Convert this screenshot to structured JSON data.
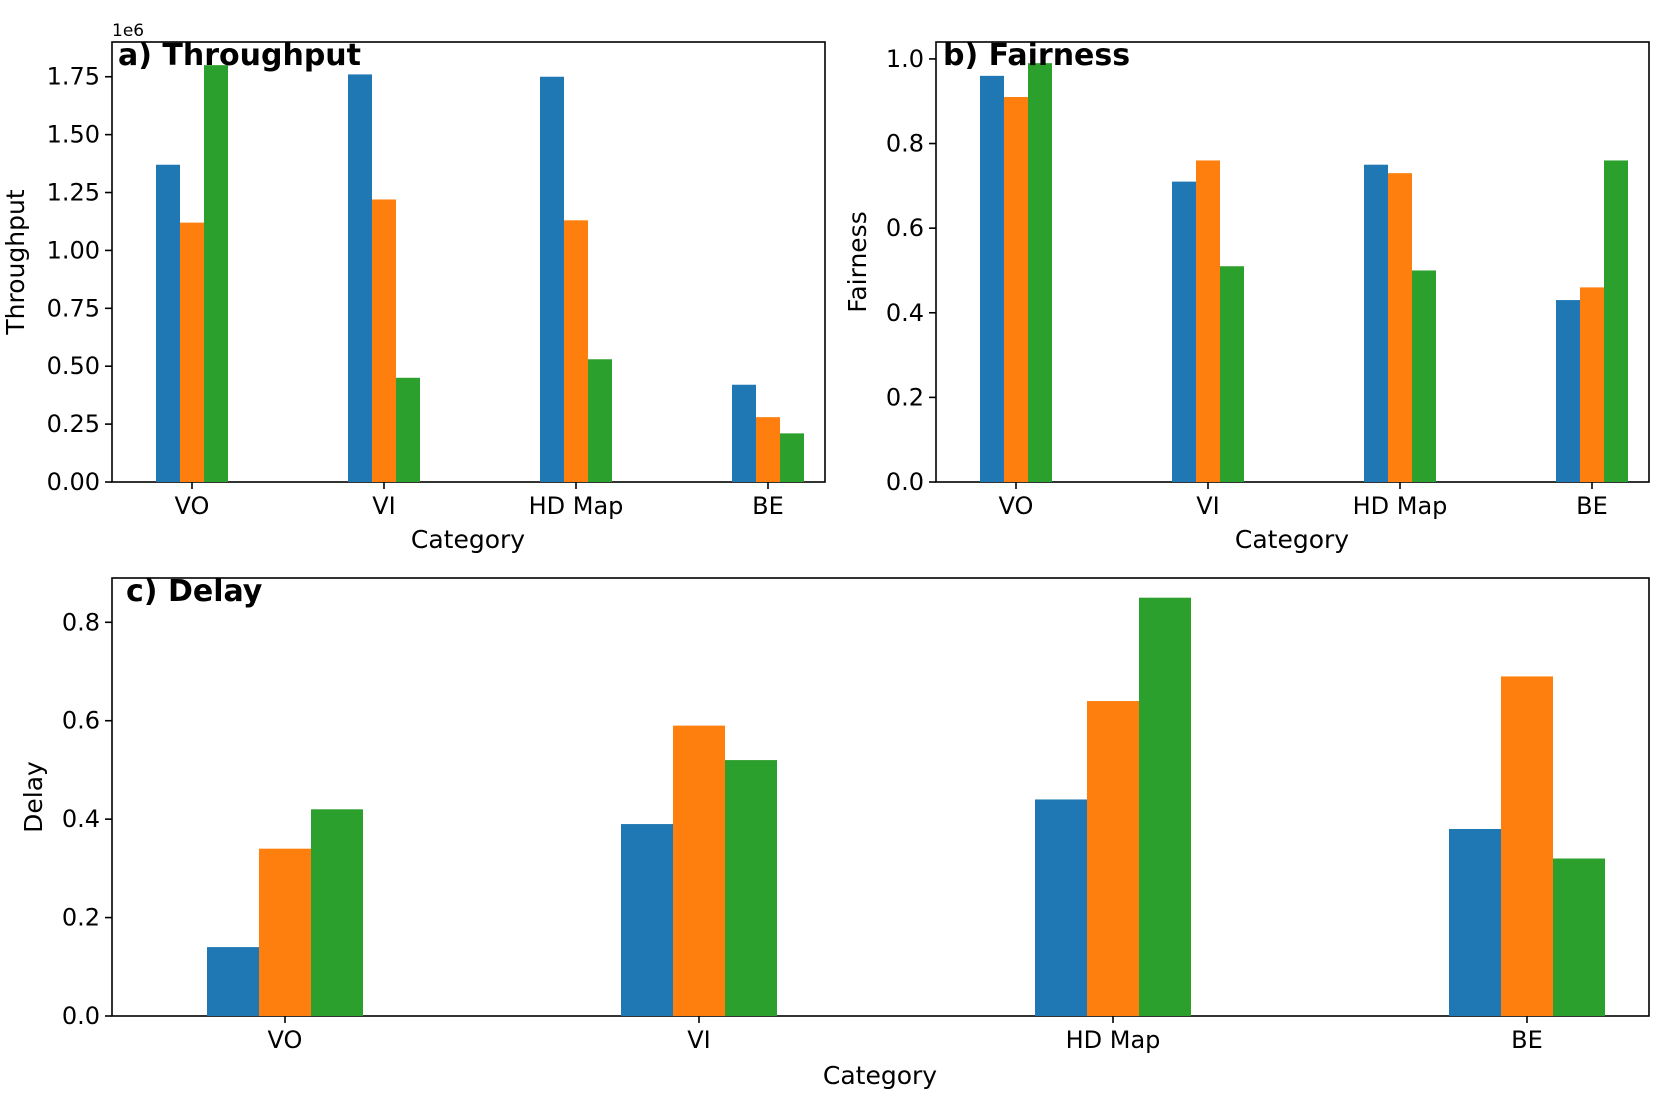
{
  "chart_data": [
    {
      "type": "bar",
      "title": "a) Throughput",
      "xlabel": "Category",
      "ylabel": "Throughput",
      "offset_text": "1e6",
      "categories": [
        "VO",
        "VI",
        "HD Map",
        "BE"
      ],
      "ylim": [
        0,
        1.9
      ],
      "yticks": [
        "0.00",
        "0.25",
        "0.50",
        "0.75",
        "1.00",
        "1.25",
        "1.50",
        "1.75"
      ],
      "grid": false,
      "series": [
        {
          "color": "#1f77b4",
          "values": [
            1.37,
            1.76,
            1.75,
            0.42
          ]
        },
        {
          "color": "#ff7f0e",
          "values": [
            1.12,
            1.22,
            1.13,
            0.28
          ]
        },
        {
          "color": "#2ca02c",
          "values": [
            1.8,
            0.45,
            0.53,
            0.21
          ]
        }
      ]
    },
    {
      "type": "bar",
      "title": "b) Fairness",
      "xlabel": "Category",
      "ylabel": "Fairness",
      "categories": [
        "VO",
        "VI",
        "HD Map",
        "BE"
      ],
      "ylim": [
        0,
        1.04
      ],
      "yticks": [
        "0.0",
        "0.2",
        "0.4",
        "0.6",
        "0.8",
        "1.0"
      ],
      "grid": false,
      "series": [
        {
          "color": "#1f77b4",
          "values": [
            0.96,
            0.71,
            0.75,
            0.43
          ]
        },
        {
          "color": "#ff7f0e",
          "values": [
            0.91,
            0.76,
            0.73,
            0.46
          ]
        },
        {
          "color": "#2ca02c",
          "values": [
            0.99,
            0.51,
            0.5,
            0.76
          ]
        }
      ]
    },
    {
      "type": "bar",
      "title": "c) Delay",
      "xlabel": "Category",
      "ylabel": "Delay",
      "categories": [
        "VO",
        "VI",
        "HD Map",
        "BE"
      ],
      "ylim": [
        0,
        0.89
      ],
      "yticks": [
        "0.0",
        "0.2",
        "0.4",
        "0.6",
        "0.8"
      ],
      "grid": false,
      "series": [
        {
          "color": "#1f77b4",
          "values": [
            0.14,
            0.39,
            0.44,
            0.38
          ]
        },
        {
          "color": "#ff7f0e",
          "values": [
            0.34,
            0.59,
            0.64,
            0.69
          ]
        },
        {
          "color": "#2ca02c",
          "values": [
            0.42,
            0.52,
            0.85,
            0.32
          ]
        }
      ]
    }
  ]
}
